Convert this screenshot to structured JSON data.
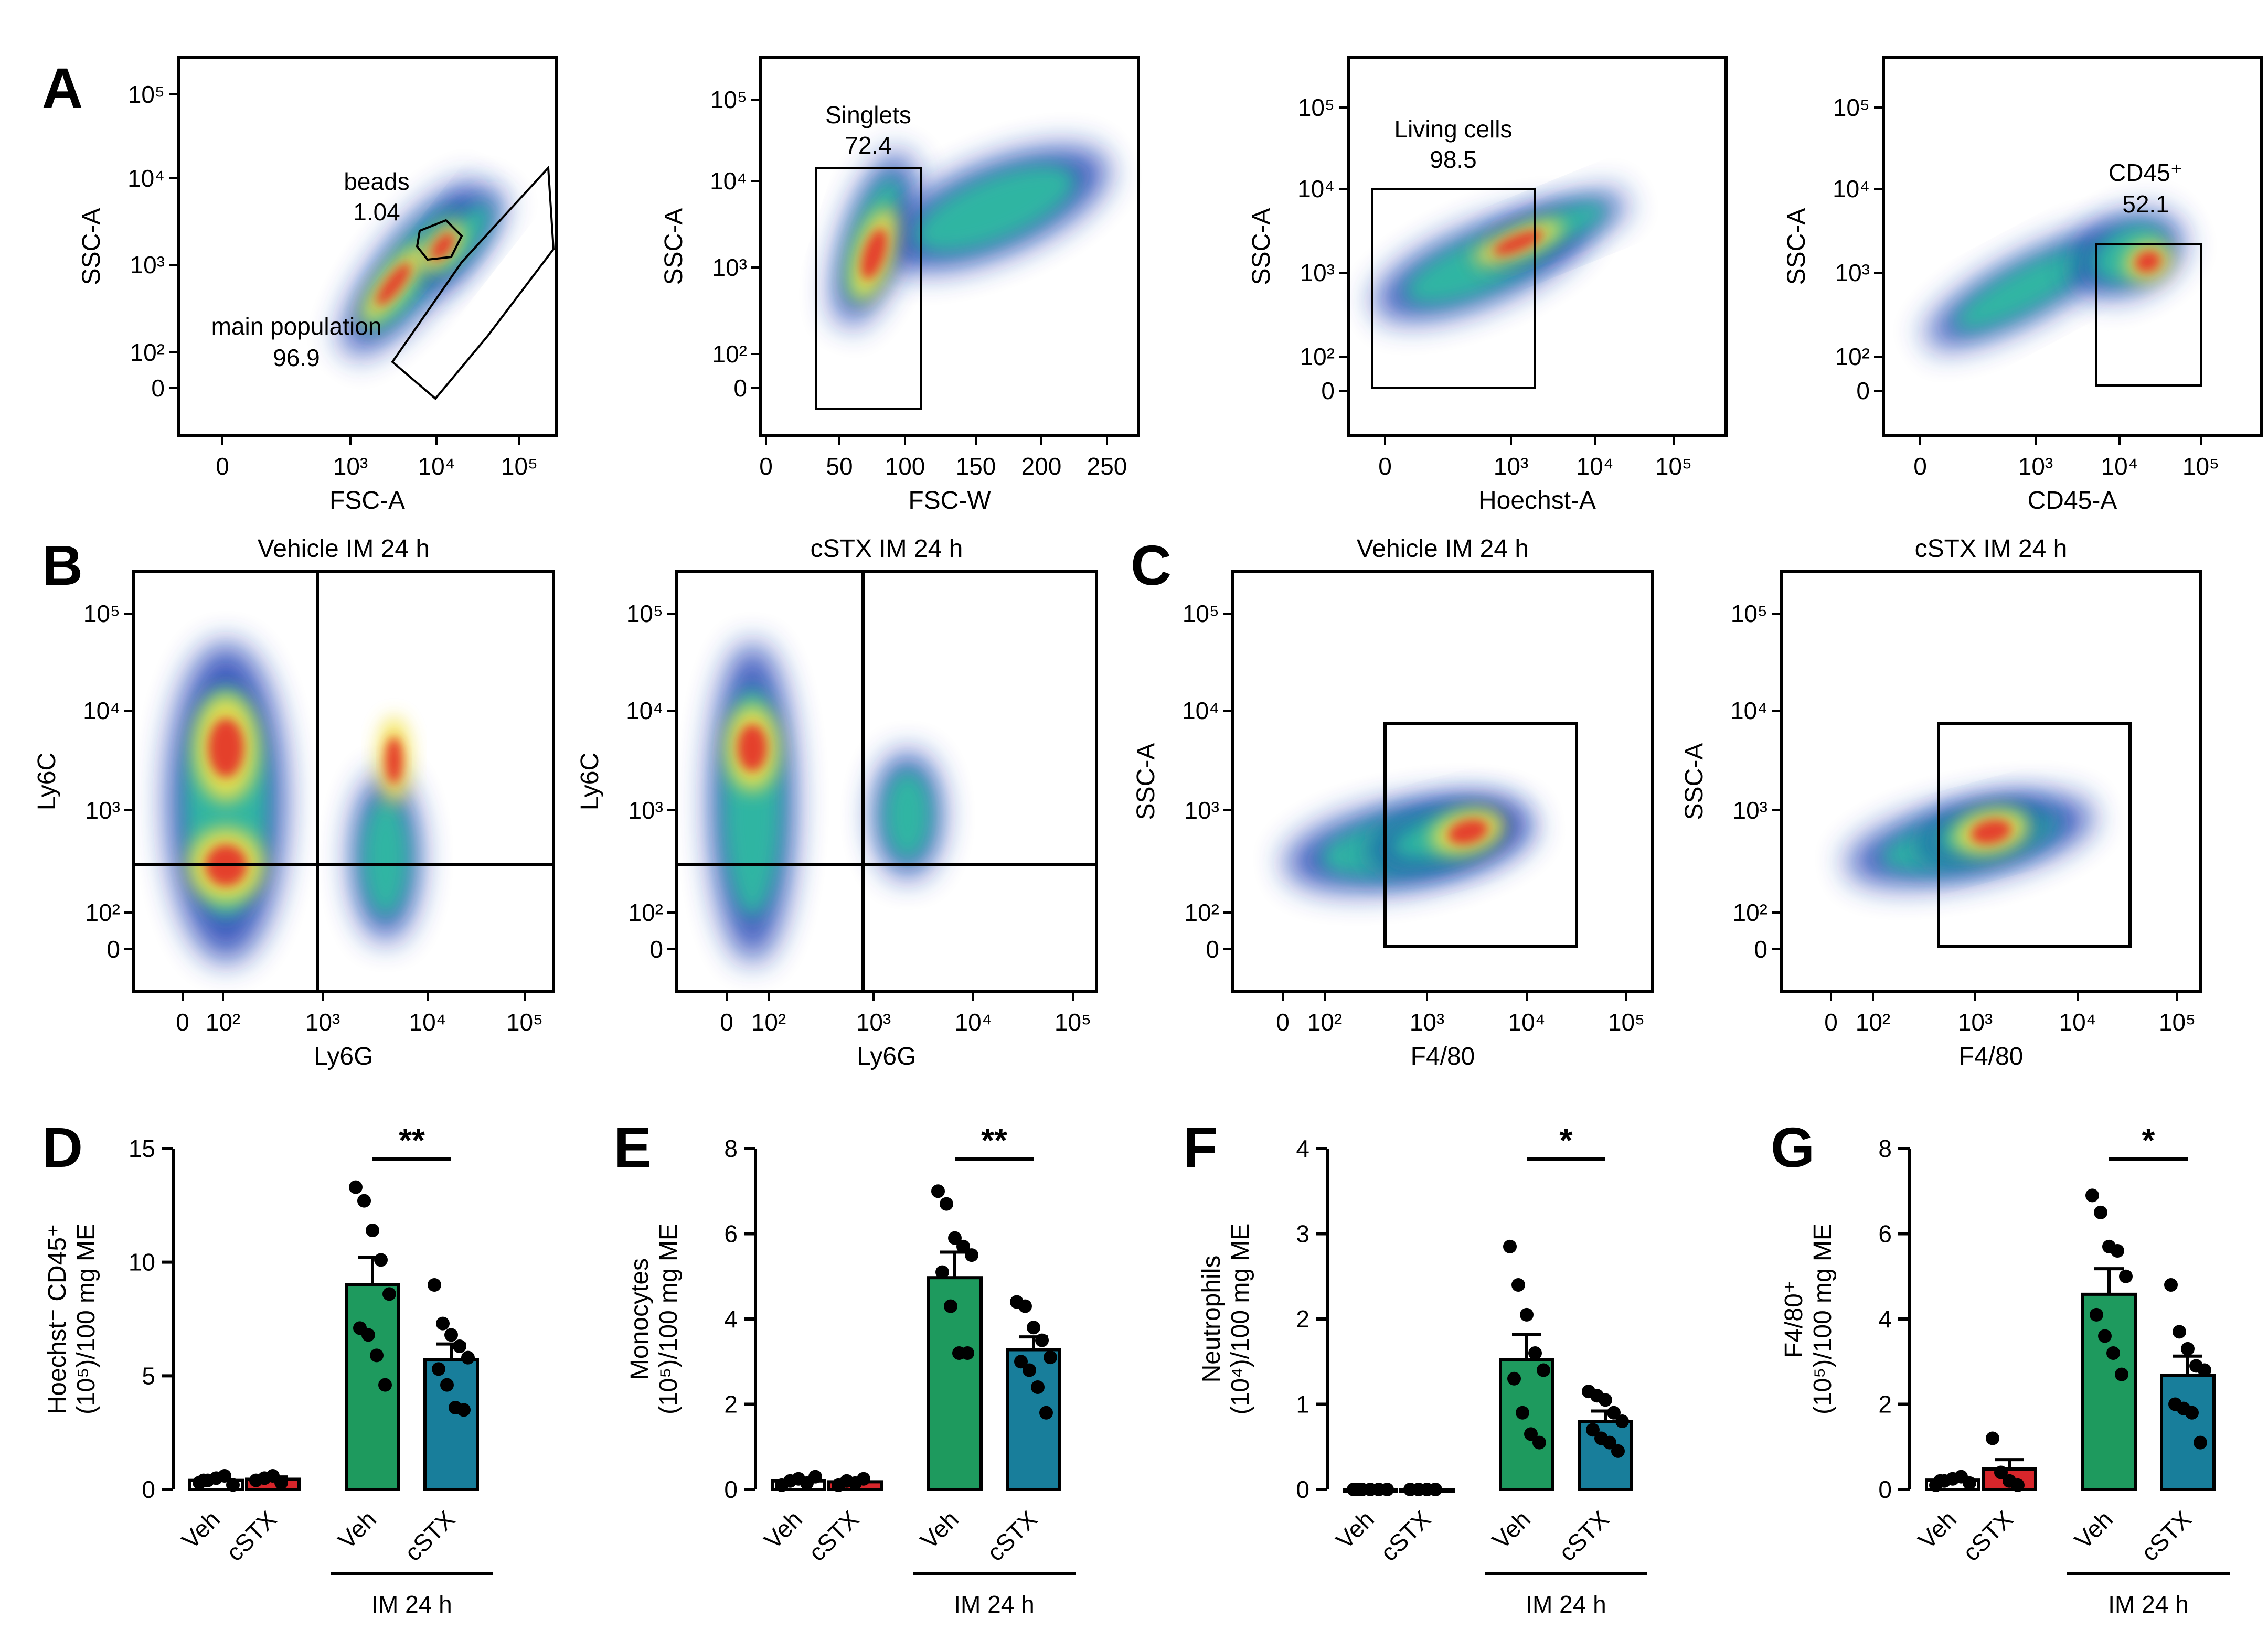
{
  "panels": {
    "A": "A",
    "B": "B",
    "C": "C",
    "D": "D",
    "E": "E",
    "F": "F",
    "G": "G"
  },
  "colors": {
    "veh_bar": "#ffffff",
    "cstx_bar": "#d7262b",
    "im_veh_bar": "#1e9a5e",
    "im_cstx_bar": "#187e9b",
    "flow_low": "#1a3cb3",
    "flow_mid": "#2fbfa0",
    "flow_high": "#e5392b"
  },
  "chart_data": [
    {
      "type": "scatter",
      "id": "A1",
      "title": "",
      "xlabel": "FSC-A",
      "ylabel": "SSC-A",
      "xticks": [
        "0",
        "10³",
        "10⁴",
        "10⁵"
      ],
      "yticks": [
        "10⁵",
        "10⁴",
        "10³",
        "10²",
        "0"
      ],
      "gates": [
        {
          "name": "beads",
          "value": "1.04"
        },
        {
          "name": "main population",
          "value": "96.9"
        }
      ]
    },
    {
      "type": "scatter",
      "id": "A2",
      "title": "",
      "xlabel": "FSC-W",
      "ylabel": "SSC-A",
      "xticks": [
        "0",
        "50",
        "100",
        "150",
        "200",
        "250"
      ],
      "yticks": [
        "10⁵",
        "10⁴",
        "10³",
        "10²",
        "0"
      ],
      "gates": [
        {
          "name": "Singlets",
          "value": "72.4"
        }
      ]
    },
    {
      "type": "scatter",
      "id": "A3",
      "title": "",
      "xlabel": "Hoechst-A",
      "ylabel": "SSC-A",
      "xticks": [
        "0",
        "10³",
        "10⁴",
        "10⁵"
      ],
      "yticks": [
        "10⁵",
        "10⁴",
        "10³",
        "10²",
        "0"
      ],
      "gates": [
        {
          "name": "Living cells",
          "value": "98.5"
        }
      ]
    },
    {
      "type": "scatter",
      "id": "A4",
      "title": "",
      "xlabel": "CD45-A",
      "ylabel": "SSC-A",
      "xticks": [
        "0",
        "10³",
        "10⁴",
        "10⁵"
      ],
      "yticks": [
        "10⁵",
        "10⁴",
        "10³",
        "10²",
        "0"
      ],
      "gates": [
        {
          "name": "CD45⁺",
          "value": "52.1"
        }
      ]
    },
    {
      "type": "scatter",
      "id": "B1",
      "title": "Vehicle IM 24 h",
      "xlabel": "Ly6G",
      "ylabel": "Ly6C",
      "xticks": [
        "0",
        "10²",
        "10³",
        "10⁴",
        "10⁵"
      ],
      "yticks": [
        "10⁵",
        "10⁴",
        "10³",
        "10²",
        "0"
      ]
    },
    {
      "type": "scatter",
      "id": "B2",
      "title": "cSTX IM 24 h",
      "xlabel": "Ly6G",
      "ylabel": "Ly6C",
      "xticks": [
        "0",
        "10²",
        "10³",
        "10⁴",
        "10⁵"
      ],
      "yticks": [
        "10⁵",
        "10⁴",
        "10³",
        "10²",
        "0"
      ]
    },
    {
      "type": "scatter",
      "id": "C1",
      "title": "Vehicle IM 24 h",
      "xlabel": "F4/80",
      "ylabel": "SSC-A",
      "xticks": [
        "0",
        "10²",
        "10³",
        "10⁴",
        "10⁵"
      ],
      "yticks": [
        "10⁵",
        "10⁴",
        "10³",
        "10²",
        "0"
      ]
    },
    {
      "type": "scatter",
      "id": "C2",
      "title": "cSTX IM 24 h",
      "xlabel": "F4/80",
      "ylabel": "SSC-A",
      "xticks": [
        "0",
        "10²",
        "10³",
        "10⁴",
        "10⁵"
      ],
      "yticks": [
        "10⁵",
        "10⁴",
        "10³",
        "10²",
        "0"
      ]
    },
    {
      "type": "bar",
      "id": "D",
      "ylabel_lines": [
        "Hoechst⁻ CD45⁺",
        "(10⁵)/100 mg ME"
      ],
      "categories": [
        "Veh",
        "cSTX",
        "Veh",
        "cSTX"
      ],
      "group_label": "IM 24 h",
      "ylim": [
        0,
        15
      ],
      "yticks": [
        0,
        5,
        10,
        15
      ],
      "values": [
        0.4,
        0.45,
        9.0,
        5.7
      ],
      "errors": [
        0.1,
        0.1,
        1.2,
        0.7
      ],
      "points": [
        [
          0.3,
          0.4,
          0.5,
          0.6,
          0.2,
          0.4
        ],
        [
          0.4,
          0.5,
          0.6,
          0.3
        ],
        [
          13.3,
          12.7,
          11.4,
          10.1,
          8.6,
          7.1,
          6.8,
          5.9,
          4.6
        ],
        [
          9.0,
          7.3,
          6.8,
          6.3,
          5.8,
          5.3,
          4.6,
          3.6,
          3.5
        ]
      ],
      "significance": "**"
    },
    {
      "type": "bar",
      "id": "E",
      "ylabel_lines": [
        "Monocytes",
        "(10⁵)/100 mg ME"
      ],
      "categories": [
        "Veh",
        "cSTX",
        "Veh",
        "cSTX"
      ],
      "group_label": "IM 24 h",
      "ylim": [
        0,
        8
      ],
      "yticks": [
        0,
        2,
        4,
        6,
        8
      ],
      "values": [
        0.2,
        0.18,
        4.97,
        3.28
      ],
      "errors": [
        0.05,
        0.05,
        0.6,
        0.3
      ],
      "points": [
        [
          0.1,
          0.2,
          0.25,
          0.15,
          0.3
        ],
        [
          0.1,
          0.2,
          0.15,
          0.25
        ],
        [
          7.0,
          6.7,
          5.9,
          5.7,
          5.5,
          5.1,
          4.3,
          3.2,
          3.2
        ],
        [
          4.4,
          4.3,
          3.8,
          3.5,
          3.1,
          3.0,
          2.8,
          2.4,
          1.8
        ]
      ],
      "significance": "**"
    },
    {
      "type": "bar",
      "id": "F",
      "ylabel_lines": [
        "Neutrophils",
        "(10⁴)/100 mg ME"
      ],
      "categories": [
        "Veh",
        "cSTX",
        "Veh",
        "cSTX"
      ],
      "group_label": "IM 24 h",
      "ylim": [
        0,
        4
      ],
      "yticks": [
        0,
        1,
        2,
        3,
        4
      ],
      "values": [
        0,
        0,
        1.52,
        0.8
      ],
      "errors": [
        0,
        0,
        0.3,
        0.12
      ],
      "points": [
        [
          0,
          0,
          0,
          0,
          0,
          0
        ],
        [
          0,
          0,
          0,
          0
        ],
        [
          2.85,
          2.4,
          2.05,
          1.6,
          1.4,
          1.3,
          0.9,
          0.65,
          0.55
        ],
        [
          1.15,
          1.1,
          1.05,
          0.9,
          0.8,
          0.7,
          0.6,
          0.55,
          0.45
        ]
      ],
      "significance": "*"
    },
    {
      "type": "bar",
      "id": "G",
      "ylabel_lines": [
        "F4/80⁺",
        "(10⁵)/100 mg ME"
      ],
      "categories": [
        "Veh",
        "cSTX",
        "Veh",
        "cSTX"
      ],
      "group_label": "IM 24 h",
      "ylim": [
        0,
        8
      ],
      "yticks": [
        0,
        2,
        4,
        6,
        8
      ],
      "values": [
        0.22,
        0.48,
        4.58,
        2.68
      ],
      "errors": [
        0.05,
        0.22,
        0.6,
        0.45
      ],
      "points": [
        [
          0.1,
          0.2,
          0.25,
          0.3,
          0.15,
          0.2
        ],
        [
          1.2,
          0.4,
          0.2,
          0.1
        ],
        [
          6.9,
          6.5,
          5.7,
          5.6,
          5.0,
          4.1,
          3.6,
          3.2,
          2.7
        ],
        [
          4.8,
          3.7,
          3.3,
          2.9,
          2.8,
          2.0,
          1.9,
          1.8,
          1.1
        ]
      ],
      "significance": "*"
    }
  ]
}
